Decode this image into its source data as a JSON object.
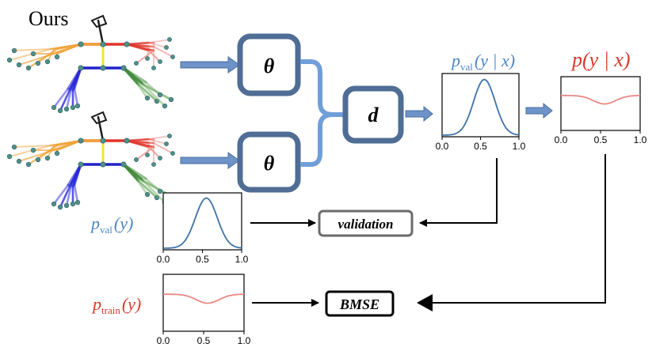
{
  "title": "Ours",
  "nodes": {
    "theta_top": "θ",
    "theta_bottom": "θ",
    "d": "d",
    "validation": "validation",
    "bmse": "BMSE"
  },
  "labels": {
    "pval_yx": {
      "p": "p",
      "sub": "val",
      "tail": "(y | x)"
    },
    "p_yx": "p(y | x)",
    "pval_y": {
      "p": "p",
      "sub": "val",
      "tail": "(y)"
    },
    "ptrain_y": {
      "p": "p",
      "sub": "train",
      "tail": "(y)"
    }
  },
  "colors": {
    "block": "#4f6d95",
    "arrow_fill": "#6d93c8",
    "merge": "#6f9ed8",
    "blue_text": "#4a86c8",
    "red_text": "#d8392b",
    "blue_curve": "#3f73a8",
    "red_curve": "#e88883"
  },
  "chart_data": [
    {
      "type": "line",
      "name": "pval_y_given_x",
      "shape": "gaussian",
      "x": [
        0.0,
        0.5,
        1.0
      ],
      "xticklabels": [
        "0.0",
        "0.5",
        "1.0"
      ],
      "xlim": [
        0.0,
        1.0
      ],
      "peak_at": 0.55,
      "color": "blue"
    },
    {
      "type": "line",
      "name": "p_y_given_x",
      "shape": "inverted-dip",
      "x": [
        0.0,
        0.5,
        1.0
      ],
      "xticklabels": [
        "0.0",
        "0.5",
        "1.0"
      ],
      "xlim": [
        0.0,
        1.0
      ],
      "dip_at": 0.55,
      "color": "red"
    },
    {
      "type": "line",
      "name": "pval_y",
      "shape": "gaussian",
      "x": [
        0.0,
        0.5,
        1.0
      ],
      "xticklabels": [
        "0.0",
        "0.5",
        "1.0"
      ],
      "xlim": [
        0.0,
        1.0
      ],
      "peak_at": 0.55,
      "color": "blue"
    },
    {
      "type": "line",
      "name": "ptrain_y",
      "shape": "inverted-dip",
      "x": [
        0.0,
        0.5,
        1.0
      ],
      "xticklabels": [
        "0.0",
        "0.5",
        "1.0"
      ],
      "xlim": [
        0.0,
        1.0
      ],
      "dip_at": 0.55,
      "color": "red"
    }
  ]
}
